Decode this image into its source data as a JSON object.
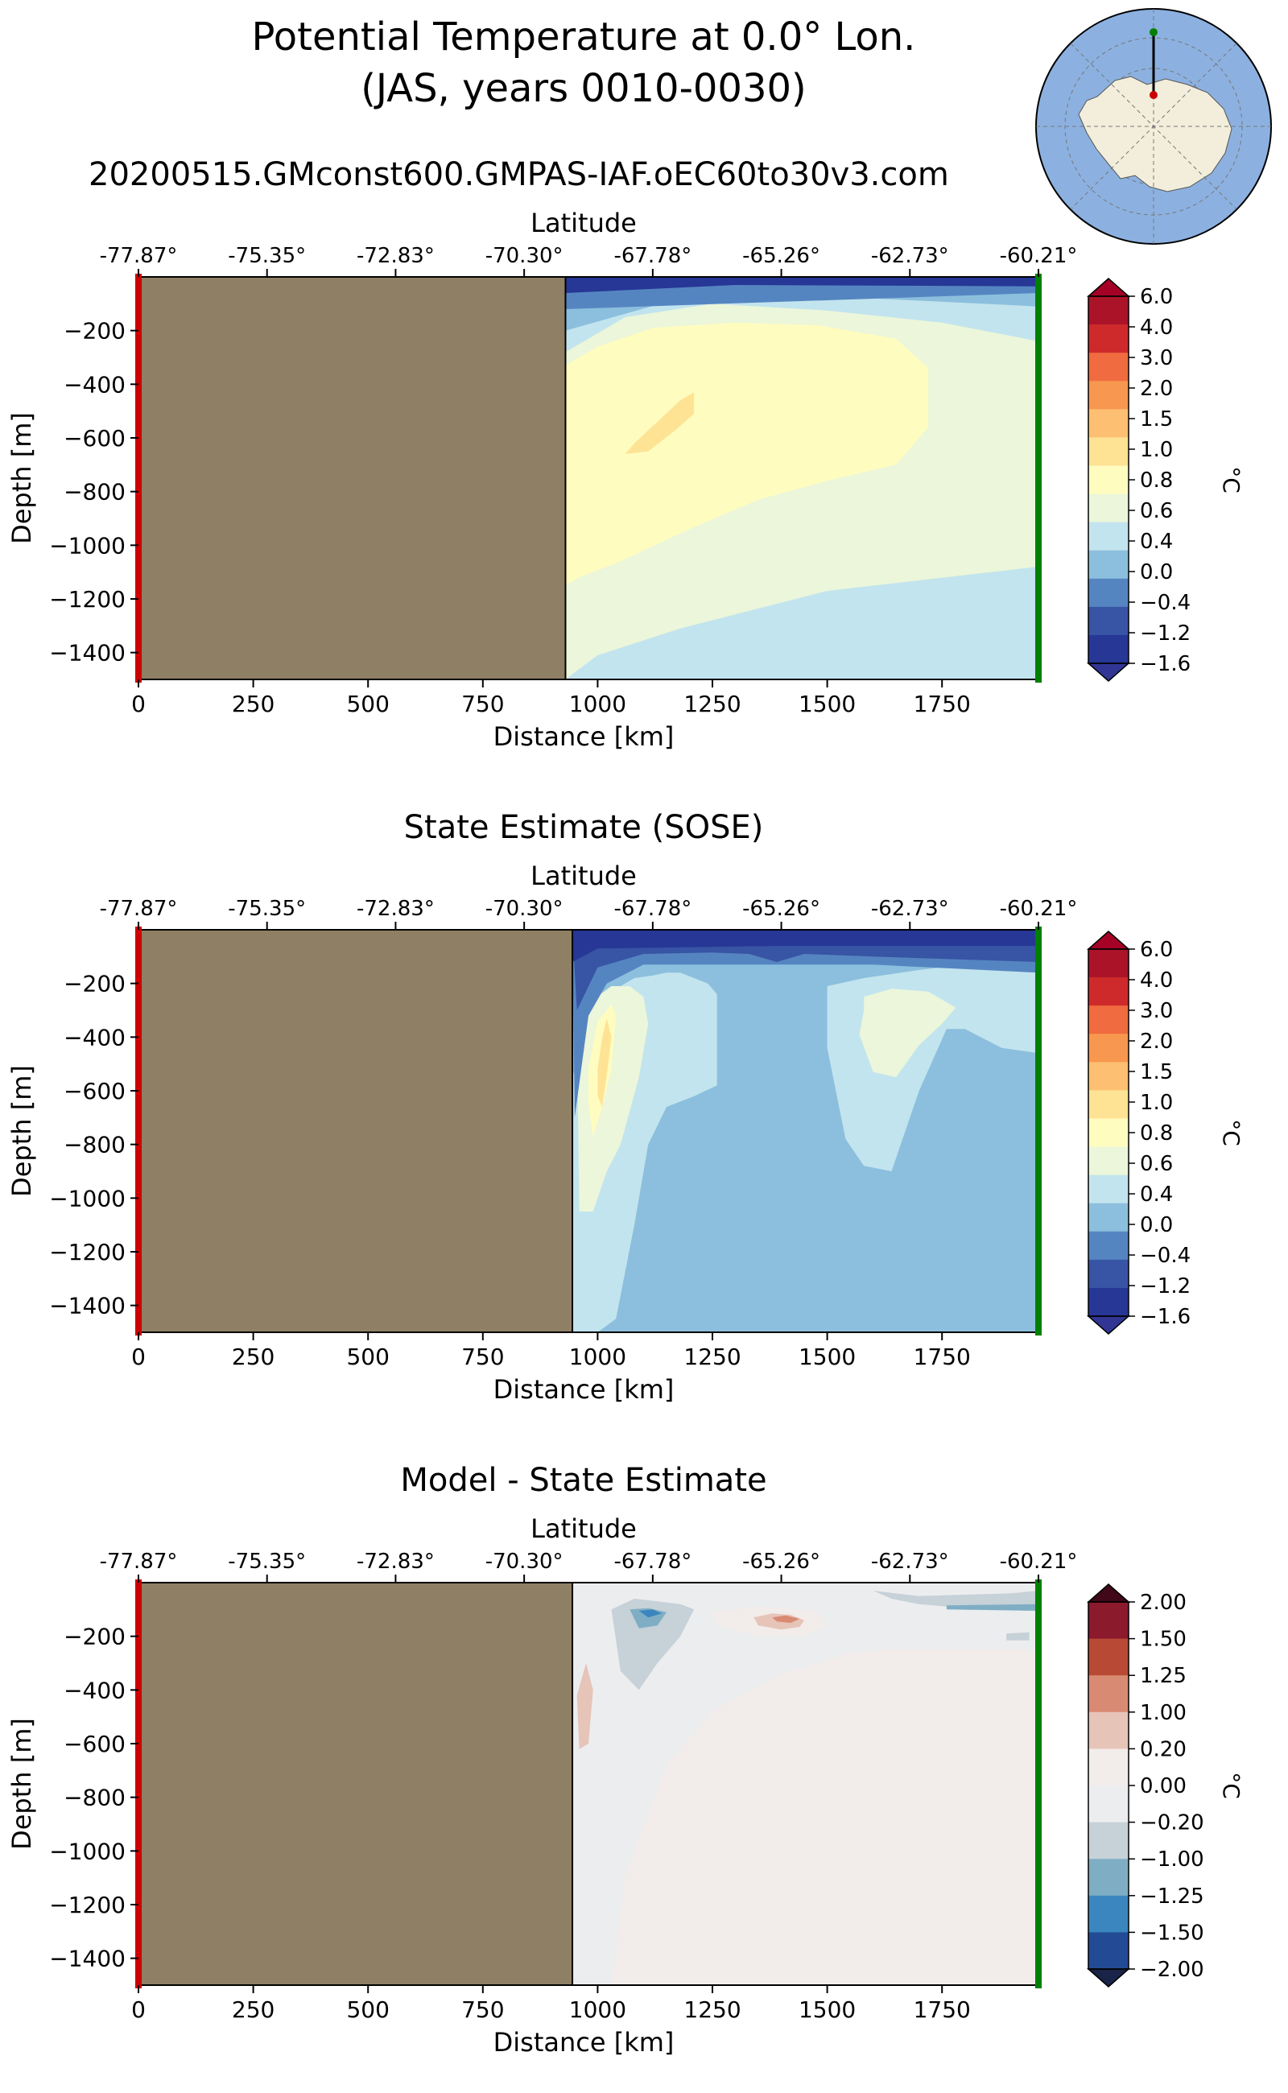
{
  "figure": {
    "title_line1": "Potential Temperature at 0.0° Lon.",
    "title_line2": "(JAS, years 0010-0030)",
    "run_name": "20200515.GMconst600.GMPAS-IAF.oEC60to30v3.com"
  },
  "colors": {
    "land": "#8e7f65",
    "start_marker": "#cc0000",
    "end_marker": "#008000",
    "inset_ocean": "#8cb1e0",
    "inset_land": "#f2eedb"
  },
  "chart_data": [
    {
      "type": "contourf",
      "id": "model",
      "title": "",
      "xlabel": "Distance [km]",
      "ylabel": "Depth [m]",
      "top_axis_label": "Latitude",
      "xlim": [
        0,
        1960
      ],
      "ylim": [
        -1500,
        0
      ],
      "x_ticks": [
        0,
        250,
        500,
        750,
        1000,
        1250,
        1500,
        1750
      ],
      "y_ticks": [
        -200,
        -400,
        -600,
        -800,
        -1000,
        -1200,
        -1400
      ],
      "latitude_ticks": [
        "-77.87°",
        "-75.35°",
        "-72.83°",
        "-70.30°",
        "-67.78°",
        "-65.26°",
        "-62.73°",
        "-60.21°"
      ],
      "land_extent_km": [
        0,
        930
      ],
      "colorbar_unit": "°C",
      "colorbar_levels": [
        "6.0",
        "4.0",
        "3.0",
        "2.0",
        "1.5",
        "1.0",
        "0.8",
        "0.6",
        "0.4",
        "0.0",
        "−0.4",
        "−1.2",
        "−1.6"
      ],
      "colorbar_colors": [
        "#ab1428",
        "#cf2a2b",
        "#f06b40",
        "#f8974f",
        "#fdbf72",
        "#fee395",
        "#fffcc0",
        "#ebf6da",
        "#c2e4ee",
        "#8cbfdd",
        "#5585c1",
        "#3854a4",
        "#263795"
      ],
      "extend_colors": {
        "max": "#a50026",
        "min": "#313695"
      },
      "regions": [
        {
          "level": "0.4",
          "x": [
            930,
            1960,
            1960,
            1180,
            930
          ],
          "y": [
            -800,
            -780,
            -1500,
            -1500,
            -1500
          ]
        },
        {
          "level": "0.6",
          "x": [
            930,
            1250,
            1500,
            1750,
            1960,
            1960,
            1500,
            1180,
            1000,
            930
          ],
          "y": [
            -40,
            -60,
            -90,
            -160,
            -200,
            -1080,
            -1170,
            -1310,
            -1410,
            -1500
          ]
        },
        {
          "level": "0.8",
          "x": [
            930,
            1000,
            1120,
            1300,
            1480,
            1650,
            1720,
            1720,
            1650,
            1500,
            1350,
            1200,
            1050,
            960,
            930
          ],
          "y": [
            -330,
            -260,
            -190,
            -170,
            -180,
            -230,
            -340,
            -560,
            -700,
            -760,
            -830,
            -940,
            -1060,
            -1120,
            -1150
          ]
        },
        {
          "level": "1.0",
          "x": [
            1080,
            1130,
            1180,
            1210,
            1210,
            1170,
            1110,
            1060
          ],
          "y": [
            -620,
            -540,
            -460,
            -430,
            -510,
            -570,
            -650,
            -660
          ]
        },
        {
          "level": "0.4",
          "x": [
            930,
            1060,
            1250,
            1500,
            1750,
            1960,
            1960,
            1750,
            1500,
            1250,
            1060,
            930
          ],
          "y": [
            -40,
            -45,
            -55,
            -65,
            -85,
            -90,
            -240,
            -170,
            -125,
            -100,
            -150,
            -280
          ]
        },
        {
          "level": "0.0",
          "x": [
            930,
            1200,
            1600,
            1960,
            1960,
            1600,
            1200,
            930
          ],
          "y": [
            -30,
            -35,
            -45,
            -55,
            -110,
            -80,
            -70,
            -200
          ]
        },
        {
          "level": "−0.4",
          "x": [
            930,
            1960,
            1960,
            930
          ],
          "y": [
            0,
            0,
            -60,
            -120
          ]
        },
        {
          "level": "−1.6",
          "x": [
            930,
            1960,
            1960,
            1300,
            930
          ],
          "y": [
            0,
            0,
            -35,
            -30,
            -60
          ]
        }
      ]
    },
    {
      "type": "contourf",
      "id": "sose",
      "title": "State Estimate (SOSE)",
      "xlabel": "Distance [km]",
      "ylabel": "Depth [m]",
      "top_axis_label": "Latitude",
      "xlim": [
        0,
        1960
      ],
      "ylim": [
        -1500,
        0
      ],
      "x_ticks": [
        0,
        250,
        500,
        750,
        1000,
        1250,
        1500,
        1750
      ],
      "y_ticks": [
        -200,
        -400,
        -600,
        -800,
        -1000,
        -1200,
        -1400
      ],
      "latitude_ticks": [
        "-77.87°",
        "-75.35°",
        "-72.83°",
        "-70.30°",
        "-67.78°",
        "-65.26°",
        "-62.73°",
        "-60.21°"
      ],
      "land_extent_km": [
        0,
        945
      ],
      "colorbar_unit": "°C",
      "colorbar_levels": [
        "6.0",
        "4.0",
        "3.0",
        "2.0",
        "1.5",
        "1.0",
        "0.8",
        "0.6",
        "0.4",
        "0.0",
        "−0.4",
        "−1.2",
        "−1.6"
      ],
      "colorbar_colors": [
        "#ab1428",
        "#cf2a2b",
        "#f06b40",
        "#f8974f",
        "#fdbf72",
        "#fee395",
        "#fffcc0",
        "#ebf6da",
        "#c2e4ee",
        "#8cbfdd",
        "#5585c1",
        "#3854a4",
        "#263795"
      ],
      "extend_colors": {
        "max": "#a50026",
        "min": "#313695"
      },
      "regions": [
        {
          "level": "0.0",
          "x": [
            1280,
            1330,
            1380,
            1410,
            1460,
            1400,
            1310
          ],
          "y": [
            -1500,
            -1390,
            -1330,
            -1370,
            -1500,
            -1500,
            -1500
          ]
        },
        {
          "level": "0.0",
          "x": [
            1660,
            1760,
            1860,
            1960,
            1960,
            1660
          ],
          "y": [
            -1500,
            -1400,
            -1360,
            -1350,
            -1500,
            -1500
          ]
        },
        {
          "level": "0.4",
          "x": [
            945,
            985,
            1030,
            1080,
            1120,
            1150,
            1180,
            1210,
            1240,
            1260,
            1260,
            1210,
            1150,
            1110,
            1080,
            1040,
            1000,
            960,
            945
          ],
          "y": [
            -550,
            -330,
            -230,
            -180,
            -170,
            -160,
            -160,
            -180,
            -200,
            -240,
            -580,
            -620,
            -660,
            -800,
            -1100,
            -1450,
            -1500,
            -1500,
            -1500
          ]
        },
        {
          "level": "0.4",
          "x": [
            1500,
            1580,
            1700,
            1800,
            1900,
            1960,
            1960,
            1880,
            1800,
            1760,
            1700,
            1640,
            1580,
            1540,
            1500
          ],
          "y": [
            -210,
            -180,
            -150,
            -130,
            -120,
            -120,
            -460,
            -440,
            -370,
            -370,
            -600,
            -900,
            -880,
            -780,
            -440
          ]
        },
        {
          "level": "0.6",
          "x": [
            955,
            990,
            1030,
            1070,
            1100,
            1110,
            1090,
            1050,
            1020,
            990,
            960
          ],
          "y": [
            -360,
            -260,
            -210,
            -210,
            -250,
            -350,
            -550,
            -800,
            -900,
            -1050,
            -1050
          ]
        },
        {
          "level": "0.6",
          "x": [
            1580,
            1640,
            1720,
            1780,
            1750,
            1700,
            1650,
            1600,
            1570,
            1580
          ],
          "y": [
            -250,
            -220,
            -230,
            -290,
            -350,
            -430,
            -550,
            -530,
            -390,
            -300
          ]
        },
        {
          "level": "0.8",
          "x": [
            980,
            1000,
            1030,
            1040,
            1030,
            1010,
            990,
            980
          ],
          "y": [
            -520,
            -340,
            -280,
            -320,
            -520,
            -660,
            -770,
            -650
          ]
        },
        {
          "level": "1.0",
          "x": [
            1000,
            1010,
            1020,
            1030,
            1020,
            1010,
            1000
          ],
          "y": [
            -520,
            -400,
            -330,
            -400,
            -540,
            -660,
            -620
          ]
        },
        {
          "level": "−0.4",
          "x": [
            945,
            1000,
            1100,
            1250,
            1400,
            1600,
            1960,
            1960,
            1600,
            1400,
            1250,
            1100,
            1020,
            980,
            950
          ],
          "y": [
            0,
            0,
            0,
            0,
            0,
            0,
            0,
            -160,
            -130,
            -130,
            -130,
            -130,
            -200,
            -320,
            -700
          ]
        },
        {
          "level": "−1.2",
          "x": [
            945,
            1960,
            1960,
            1600,
            1450,
            1390,
            1330,
            1250,
            1100,
            1000,
            955
          ],
          "y": [
            0,
            0,
            -120,
            -100,
            -90,
            -120,
            -90,
            -85,
            -90,
            -140,
            -300
          ]
        },
        {
          "level": "−1.6",
          "x": [
            945,
            1960,
            1960,
            1400,
            1000,
            945
          ],
          "y": [
            0,
            0,
            -60,
            -60,
            -70,
            -120
          ]
        }
      ]
    },
    {
      "type": "contourf",
      "id": "difference",
      "title": "Model - State Estimate",
      "xlabel": "Distance [km]",
      "ylabel": "Depth [m]",
      "top_axis_label": "Latitude",
      "xlim": [
        0,
        1960
      ],
      "ylim": [
        -1500,
        0
      ],
      "x_ticks": [
        0,
        250,
        500,
        750,
        1000,
        1250,
        1500,
        1750
      ],
      "y_ticks": [
        -200,
        -400,
        -600,
        -800,
        -1000,
        -1200,
        -1400
      ],
      "latitude_ticks": [
        "-77.87°",
        "-75.35°",
        "-72.83°",
        "-70.30°",
        "-67.78°",
        "-65.26°",
        "-62.73°",
        "-60.21°"
      ],
      "land_extent_km": [
        0,
        945
      ],
      "colorbar_unit": "°C",
      "colorbar_levels": [
        "2.00",
        "1.50",
        "1.25",
        "1.00",
        "0.20",
        "0.00",
        "−0.20",
        "−1.00",
        "−1.25",
        "−1.50",
        "−2.00"
      ],
      "colorbar_colors": [
        "#8b1a2d",
        "#b84a35",
        "#d98a72",
        "#e6c4b8",
        "#f2ecea",
        "#ecedef",
        "#c6d1d8",
        "#7faec4",
        "#3b86bf",
        "#234b95"
      ],
      "extend_colors": {
        "max": "#400818",
        "min": "#1a2448"
      },
      "regions": [
        {
          "level": "0.20",
          "x": [
            1060,
            1150,
            1250,
            1400,
            1520,
            1540,
            1580,
            1620,
            1700,
            1800,
            1960,
            1960,
            1030
          ],
          "y": [
            -1090,
            -680,
            -480,
            -340,
            -280,
            -260,
            -260,
            -250,
            -250,
            -250,
            -250,
            -1500,
            -1500
          ]
        },
        {
          "level": "0.20",
          "x": [
            1250,
            1350,
            1420,
            1480,
            1500,
            1450,
            1350,
            1260
          ],
          "y": [
            -110,
            -90,
            -95,
            -110,
            -160,
            -200,
            -200,
            -160
          ]
        },
        {
          "level": "1.00",
          "x": [
            955,
            975,
            990,
            980,
            960
          ],
          "y": [
            -420,
            -300,
            -400,
            -600,
            -620
          ]
        },
        {
          "level": "1.00",
          "x": [
            1340,
            1380,
            1420,
            1450,
            1440,
            1400,
            1350
          ],
          "y": [
            -130,
            -115,
            -120,
            -140,
            -165,
            -175,
            -160
          ]
        },
        {
          "level": "1.25",
          "x": [
            1380,
            1410,
            1440,
            1420,
            1390
          ],
          "y": [
            -130,
            -122,
            -135,
            -150,
            -145
          ]
        },
        {
          "level": "−0.20",
          "x": [
            1030,
            1080,
            1130,
            1180,
            1210,
            1180,
            1130,
            1090,
            1050
          ],
          "y": [
            -100,
            -60,
            -70,
            -80,
            -100,
            -200,
            -300,
            -400,
            -330
          ]
        },
        {
          "level": "−0.20",
          "x": [
            1600,
            1700,
            1800,
            1900,
            1960,
            1960,
            1800,
            1700,
            1640
          ],
          "y": [
            -30,
            -50,
            -45,
            -40,
            -30,
            -100,
            -95,
            -80,
            -60
          ]
        },
        {
          "level": "−0.20",
          "x": [
            1890,
            1940,
            1940,
            1890
          ],
          "y": [
            -190,
            -185,
            -215,
            -215
          ]
        },
        {
          "level": "−1.00",
          "x": [
            1070,
            1110,
            1150,
            1130,
            1090
          ],
          "y": [
            -100,
            -95,
            -110,
            -160,
            -170
          ]
        },
        {
          "level": "−1.00",
          "x": [
            1760,
            1960,
            1960,
            1760
          ],
          "y": [
            -85,
            -80,
            -105,
            -100
          ]
        },
        {
          "level": "−1.25",
          "x": [
            1090,
            1120,
            1140,
            1110
          ],
          "y": [
            -105,
            -100,
            -115,
            -130
          ]
        }
      ]
    }
  ]
}
